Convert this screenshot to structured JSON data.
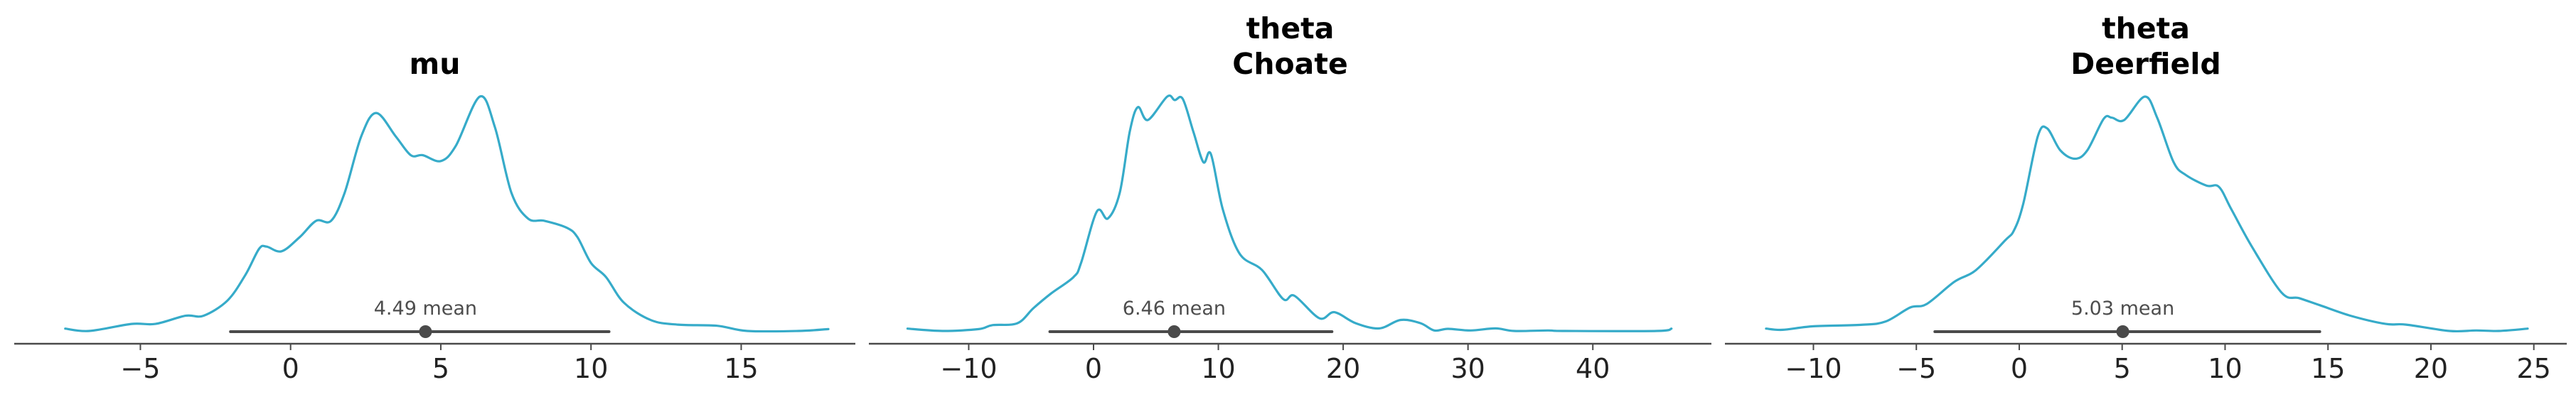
{
  "colors": {
    "density": "#36abc9",
    "axis": "#4a4a4a",
    "interval": "#4a4a4a",
    "point": "#4a4a4a"
  },
  "chart_data": [
    {
      "type": "line",
      "title": [
        "mu"
      ],
      "mean": 4.49,
      "mean_label": "4.49 mean",
      "hdi": [
        -2.0,
        10.6
      ],
      "xticks": [
        -5,
        0,
        5,
        10,
        15
      ],
      "xtick_labels": [
        "−5",
        "0",
        "5",
        "10",
        "15"
      ],
      "xlim": [
        -9.2,
        18.8
      ],
      "ylabel": "",
      "xlabel": "",
      "density_relative": {
        "x": [
          -7.5,
          -6.7,
          -5.3,
          -4.5,
          -3.5,
          -2.9,
          -2.1,
          -1.5,
          -1.05,
          -0.8,
          -0.3,
          0.3,
          0.85,
          1.35,
          1.8,
          2.35,
          2.85,
          3.5,
          4.0,
          4.4,
          5.0,
          5.5,
          6.3,
          6.8,
          7.35,
          7.9,
          8.45,
          9.2,
          9.55,
          10.0,
          10.5,
          11.1,
          12.0,
          12.9,
          14.2,
          15.2,
          16.9,
          17.9
        ],
        "y": [
          0.01,
          0.0,
          0.03,
          0.03,
          0.065,
          0.065,
          0.13,
          0.24,
          0.35,
          0.36,
          0.34,
          0.4,
          0.47,
          0.47,
          0.59,
          0.83,
          0.93,
          0.83,
          0.75,
          0.75,
          0.725,
          0.79,
          1.0,
          0.87,
          0.59,
          0.48,
          0.47,
          0.44,
          0.4,
          0.29,
          0.23,
          0.12,
          0.046,
          0.027,
          0.022,
          0.0,
          0.0,
          0.008
        ]
      }
    },
    {
      "type": "line",
      "title": [
        "theta",
        "Choate"
      ],
      "mean": 6.46,
      "mean_label": "6.46 mean",
      "hdi": [
        -3.5,
        19.1
      ],
      "xticks": [
        -10,
        0,
        10,
        20,
        30,
        40
      ],
      "xtick_labels": [
        "−10",
        "0",
        "10",
        "20",
        "30",
        "40"
      ],
      "xlim": [
        -18.0,
        49.5
      ],
      "ylabel": "",
      "xlabel": "",
      "density_relative": {
        "x": [
          -14.9,
          -12.1,
          -9.2,
          -8.1,
          -6.1,
          -4.8,
          -3.4,
          -1.6,
          -1.0,
          0.27,
          1.15,
          2.1,
          2.9,
          3.55,
          4.35,
          5.9,
          6.5,
          7.15,
          8.0,
          8.8,
          9.4,
          10.35,
          11.7,
          13.5,
          15.2,
          16.1,
          18.1,
          19.3,
          21.0,
          22.9,
          24.6,
          26.2,
          27.3,
          28.4,
          30.2,
          32.2,
          33.7,
          36.4,
          37.8,
          45.1,
          46.3
        ],
        "y": [
          0.01,
          0.0,
          0.008,
          0.025,
          0.033,
          0.098,
          0.16,
          0.23,
          0.29,
          0.51,
          0.48,
          0.59,
          0.85,
          0.955,
          0.9,
          1.0,
          0.985,
          0.99,
          0.85,
          0.72,
          0.755,
          0.52,
          0.33,
          0.26,
          0.136,
          0.15,
          0.054,
          0.08,
          0.033,
          0.011,
          0.047,
          0.033,
          0.002,
          0.009,
          0.002,
          0.011,
          0.0,
          0.002,
          0.0,
          0.0,
          0.01
        ]
      }
    },
    {
      "type": "line",
      "title": [
        "theta",
        "Deerfield"
      ],
      "mean": 5.03,
      "mean_label": "5.03 mean",
      "hdi": [
        -4.1,
        14.6
      ],
      "xticks": [
        -10,
        -5,
        0,
        5,
        10,
        15,
        20,
        25
      ],
      "xtick_labels": [
        "−10",
        "−5",
        "0",
        "5",
        "10",
        "15",
        "20",
        "25"
      ],
      "xlim": [
        -14.3,
        26.6
      ],
      "ylabel": "",
      "xlabel": "",
      "density_relative": {
        "x": [
          -12.3,
          -11.5,
          -10.0,
          -7.7,
          -6.5,
          -5.3,
          -4.5,
          -3.15,
          -2.1,
          -0.7,
          -0.25,
          0.2,
          0.9,
          1.35,
          2.0,
          2.7,
          3.3,
          4.1,
          4.5,
          5.1,
          6.1,
          6.7,
          7.5,
          8.1,
          9.1,
          9.7,
          10.3,
          11.3,
          12.75,
          13.6,
          14.6,
          16.1,
          17.8,
          18.8,
          20.9,
          22.2,
          23.3,
          24.7
        ],
        "y": [
          0.01,
          0.005,
          0.02,
          0.026,
          0.04,
          0.1,
          0.115,
          0.21,
          0.26,
          0.385,
          0.43,
          0.545,
          0.83,
          0.865,
          0.77,
          0.735,
          0.77,
          0.905,
          0.91,
          0.9,
          1.0,
          0.91,
          0.72,
          0.665,
          0.62,
          0.615,
          0.52,
          0.36,
          0.163,
          0.14,
          0.11,
          0.065,
          0.03,
          0.027,
          0.0,
          0.002,
          0.0,
          0.01
        ]
      }
    }
  ]
}
